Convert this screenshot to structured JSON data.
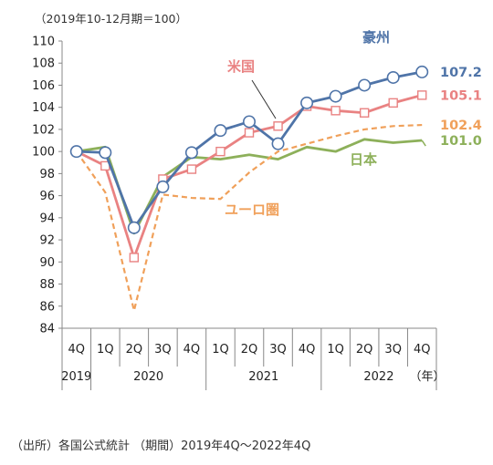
{
  "chart_data": {
    "type": "line",
    "unit_note": "（2019年10-12月期＝100）",
    "source_note": "（出所）各国公式統計 （期間）2019年4Q〜2022年4Q",
    "quarters": [
      "4Q",
      "1Q",
      "2Q",
      "3Q",
      "4Q",
      "1Q",
      "2Q",
      "3Q",
      "4Q",
      "1Q",
      "2Q",
      "3Q",
      "4Q"
    ],
    "years": [
      {
        "label": "2019",
        "start": 0,
        "end": 0
      },
      {
        "label": "2020",
        "start": 1,
        "end": 4
      },
      {
        "label": "2021",
        "start": 5,
        "end": 8
      },
      {
        "label": "2022",
        "start": 9,
        "end": 12
      }
    ],
    "year_suffix": "（年）",
    "ylim": [
      84,
      110
    ],
    "yticks": [
      84,
      86,
      88,
      90,
      92,
      94,
      96,
      98,
      100,
      102,
      104,
      106,
      108,
      110
    ],
    "grid": false,
    "series": [
      {
        "name": "豪州",
        "color": "#4F74A8",
        "marker": "circle",
        "dashed": false,
        "values": [
          100.0,
          99.9,
          93.1,
          96.8,
          99.9,
          101.9,
          102.7,
          100.7,
          104.4,
          105.0,
          106.0,
          106.7,
          107.2
        ],
        "end_label": "107.2"
      },
      {
        "name": "米国",
        "color": "#E98282",
        "marker": "square",
        "dashed": false,
        "values": [
          100.0,
          98.7,
          90.4,
          97.5,
          98.4,
          100.0,
          101.7,
          102.3,
          104.1,
          103.7,
          103.5,
          104.4,
          105.1
        ],
        "end_label": "105.1"
      },
      {
        "name": "ユーロ圏",
        "color": "#F0A05A",
        "marker": "none",
        "dashed": true,
        "values": [
          100.0,
          96.3,
          85.6,
          96.1,
          95.8,
          95.7,
          98.1,
          100.0,
          100.7,
          101.4,
          102.0,
          102.3,
          102.4
        ],
        "end_label": "102.4"
      },
      {
        "name": "日本",
        "color": "#8DB05A",
        "marker": "none",
        "dashed": false,
        "values": [
          100.0,
          100.4,
          92.6,
          97.7,
          99.5,
          99.3,
          99.7,
          99.3,
          100.4,
          100.0,
          101.1,
          100.8,
          101.0
        ],
        "end_label": "101.0"
      }
    ]
  }
}
